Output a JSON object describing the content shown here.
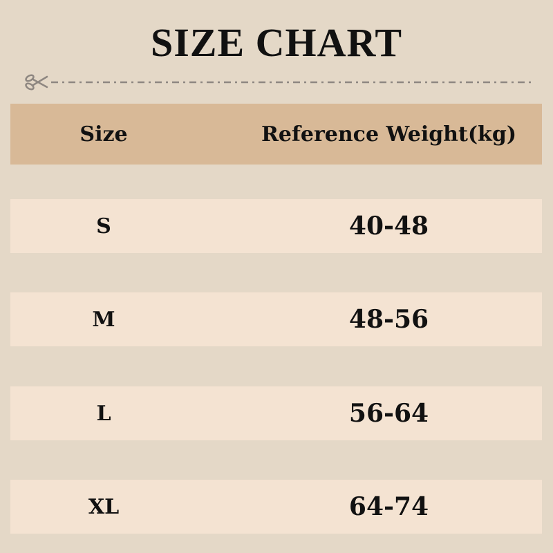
{
  "title": "SIZE CHART",
  "icons": {
    "cut_line": "scissors-icon"
  },
  "colors": {
    "background": "#e4d8c7",
    "header": "#d8b997",
    "row": "#f4e3d2",
    "cut_line": "#8e8781"
  },
  "table": {
    "headers": [
      "Size",
      "Reference Weight(kg)"
    ],
    "rows": [
      {
        "size": "S",
        "weight": "40-48"
      },
      {
        "size": "M",
        "weight": "48-56"
      },
      {
        "size": "L",
        "weight": "56-64"
      },
      {
        "size": "XL",
        "weight": "64-74"
      }
    ]
  }
}
